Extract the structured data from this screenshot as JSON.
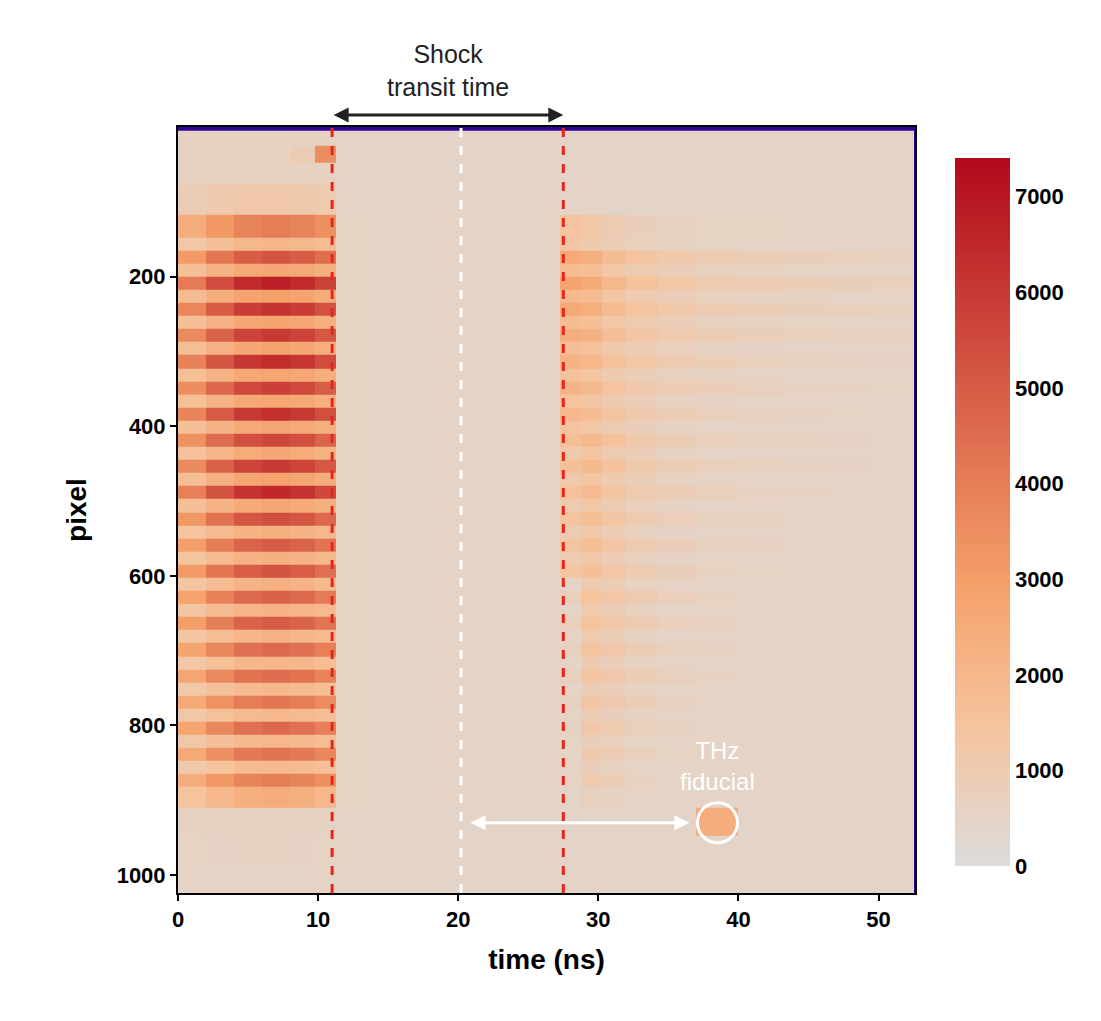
{
  "chart_data": {
    "type": "heatmap",
    "xlabel": "time (ns)",
    "ylabel": "pixel",
    "color": "Plasma",
    "xlim": [
      0,
      52.6
    ],
    "ylim": [
      1024,
      0
    ],
    "xticks": [
      0,
      10,
      20,
      30,
      40,
      50
    ],
    "yticks": [
      200,
      400,
      600,
      800,
      1000
    ],
    "colorbar": {
      "range": [
        0,
        7400
      ],
      "ticks": [
        0,
        1000,
        2000,
        3000,
        4000,
        5000,
        6000,
        7000
      ]
    },
    "x": [
      1,
      3,
      5,
      7,
      9,
      10.5,
      12,
      15,
      18,
      21,
      24,
      26.5,
      28,
      29.5,
      31,
      33,
      35.5,
      38.5,
      41.5,
      45,
      48,
      51
    ],
    "y": [
      15,
      35,
      60,
      95,
      138.75,
      156.25,
      173.75,
      191.25,
      208.75,
      226.25,
      243.75,
      261.25,
      278.75,
      296.25,
      313.75,
      331.25,
      348.75,
      366.25,
      383.75,
      401.25,
      418.75,
      436.25,
      453.75,
      471.25,
      488.75,
      506.25,
      523.75,
      541.25,
      558.75,
      576.25,
      593.75,
      611.25,
      628.75,
      646.25,
      663.75,
      681.25,
      698.75,
      716.25,
      733.75,
      751.25,
      768.75,
      786.25,
      803.75,
      821.25,
      838.75,
      856.25,
      873.75,
      891.25,
      930,
      965,
      1005
    ],
    "z": [
      [
        600,
        620,
        640,
        640,
        620,
        600,
        480,
        470,
        470,
        470,
        470,
        470,
        480,
        480,
        480,
        470,
        470,
        470,
        470,
        470,
        460,
        460
      ],
      [
        620,
        640,
        660,
        660,
        900,
        3500,
        500,
        470,
        470,
        470,
        470,
        470,
        480,
        480,
        480,
        470,
        470,
        470,
        470,
        470,
        460,
        460
      ],
      [
        650,
        680,
        700,
        700,
        680,
        650,
        490,
        470,
        470,
        470,
        470,
        470,
        480,
        480,
        480,
        470,
        470,
        470,
        470,
        470,
        460,
        460
      ],
      [
        900,
        1100,
        1200,
        1200,
        1150,
        1050,
        500,
        480,
        480,
        480,
        480,
        480,
        500,
        500,
        490,
        480,
        480,
        470,
        470,
        470,
        460,
        460
      ],
      [
        2400,
        3200,
        3800,
        4000,
        3800,
        3400,
        560,
        520,
        510,
        510,
        510,
        520,
        1400,
        1260,
        980,
        770,
        630,
        560,
        560,
        550,
        540,
        540
      ],
      [
        1250,
        1650,
        1950,
        2070,
        1950,
        1750,
        560,
        520,
        510,
        510,
        510,
        520,
        1300,
        1150,
        900,
        720,
        600,
        560,
        550,
        550,
        540,
        540
      ],
      [
        3120,
        4160,
        4940,
        5200,
        4940,
        4420,
        560,
        520,
        510,
        510,
        510,
        520,
        2600,
        2340,
        1820,
        1430,
        1170,
        990,
        860,
        780,
        730,
        680
      ],
      [
        1620,
        2160,
        2570,
        2700,
        2570,
        2300,
        560,
        520,
        510,
        510,
        510,
        520,
        1820,
        1640,
        1270,
        1000,
        820,
        690,
        600,
        560,
        550,
        540
      ],
      [
        4080,
        5440,
        6460,
        6800,
        6460,
        5780,
        560,
        520,
        510,
        510,
        510,
        520,
        2800,
        2520,
        1960,
        1540,
        1260,
        1060,
        920,
        840,
        780,
        730
      ],
      [
        1760,
        2340,
        2780,
        2930,
        2780,
        2490,
        560,
        520,
        510,
        510,
        510,
        520,
        1900,
        1760,
        1370,
        1080,
        880,
        740,
        650,
        590,
        550,
        540
      ],
      [
        3720,
        4960,
        5890,
        6200,
        5890,
        5270,
        560,
        520,
        510,
        510,
        510,
        520,
        2600,
        2340,
        1820,
        1430,
        1170,
        990,
        860,
        780,
        730,
        680
      ],
      [
        1650,
        2200,
        2610,
        2750,
        2610,
        2330,
        560,
        520,
        510,
        510,
        510,
        520,
        1820,
        1640,
        1270,
        1000,
        820,
        690,
        600,
        560,
        550,
        540
      ],
      [
        3600,
        4800,
        5700,
        6000,
        5700,
        5100,
        560,
        520,
        510,
        510,
        510,
        520,
        2400,
        2160,
        1680,
        1320,
        1080,
        910,
        790,
        720,
        670,
        620
      ],
      [
        1670,
        2230,
        2650,
        2790,
        2650,
        2370,
        560,
        520,
        510,
        510,
        510,
        520,
        1680,
        1510,
        1180,
        920,
        760,
        640,
        570,
        550,
        540,
        540
      ],
      [
        3840,
        5120,
        6080,
        6400,
        6080,
        5440,
        560,
        520,
        510,
        510,
        510,
        520,
        2200,
        1980,
        1540,
        1210,
        990,
        840,
        730,
        660,
        620,
        570
      ],
      [
        1650,
        2200,
        2610,
        2750,
        2610,
        2330,
        560,
        520,
        510,
        510,
        510,
        520,
        1540,
        1390,
        1080,
        850,
        690,
        590,
        550,
        540,
        540,
        530
      ],
      [
        3480,
        4640,
        5510,
        5800,
        5510,
        4930,
        560,
        520,
        510,
        510,
        510,
        520,
        2100,
        1890,
        1470,
        1160,
        950,
        800,
        690,
        630,
        590,
        560
      ],
      [
        1630,
        2180,
        2580,
        2720,
        2580,
        2310,
        560,
        520,
        510,
        510,
        510,
        520,
        1470,
        1320,
        1030,
        810,
        660,
        570,
        550,
        540,
        530,
        530
      ],
      [
        3780,
        5040,
        5990,
        6300,
        5990,
        5360,
        560,
        520,
        510,
        510,
        510,
        520,
        2000,
        1800,
        1400,
        1100,
        900,
        760,
        660,
        600,
        560,
        550
      ],
      [
        1610,
        2140,
        2550,
        2680,
        2550,
        2280,
        560,
        520,
        510,
        510,
        510,
        520,
        1400,
        1260,
        980,
        770,
        630,
        550,
        540,
        540,
        530,
        530
      ],
      [
        3360,
        4480,
        5320,
        5600,
        5320,
        4760,
        560,
        520,
        510,
        510,
        510,
        520,
        1620,
        1900,
        1520,
        1140,
        910,
        760,
        670,
        610,
        570,
        550
      ],
      [
        1570,
        2090,
        2480,
        2610,
        2480,
        2220,
        560,
        520,
        510,
        510,
        510,
        520,
        1130,
        1330,
        1060,
        800,
        640,
        550,
        540,
        540,
        530,
        530
      ],
      [
        3600,
        4800,
        5700,
        6000,
        5700,
        5100,
        560,
        520,
        510,
        510,
        510,
        520,
        1620,
        1900,
        1520,
        1140,
        910,
        760,
        670,
        610,
        570,
        550
      ],
      [
        1690,
        2250,
        2670,
        2810,
        2670,
        2390,
        560,
        520,
        510,
        510,
        510,
        520,
        1130,
        1330,
        1060,
        800,
        640,
        550,
        540,
        540,
        530,
        530
      ],
      [
        3900,
        5200,
        6180,
        6500,
        6180,
        5530,
        560,
        520,
        510,
        510,
        510,
        520,
        1530,
        1800,
        1440,
        1080,
        860,
        720,
        630,
        580,
        540,
        530
      ],
      [
        1610,
        2140,
        2550,
        2680,
        2550,
        2280,
        560,
        520,
        510,
        510,
        510,
        520,
        1070,
        1260,
        1010,
        760,
        600,
        550,
        540,
        530,
        530,
        520
      ],
      [
        3240,
        4320,
        5130,
        5400,
        5130,
        4590,
        560,
        520,
        510,
        510,
        510,
        520,
        1450,
        1700,
        1360,
        1020,
        820,
        680,
        600,
        540,
        530,
        520
      ],
      [
        1400,
        1870,
        2220,
        2340,
        2220,
        1990,
        560,
        520,
        510,
        510,
        510,
        520,
        1010,
        1190,
        950,
        710,
        570,
        540,
        530,
        530,
        520,
        520
      ],
      [
        3000,
        4000,
        4750,
        5000,
        4750,
        4250,
        560,
        520,
        510,
        510,
        510,
        520,
        1450,
        1700,
        1360,
        1020,
        820,
        680,
        600,
        540,
        530,
        520
      ],
      [
        1380,
        1840,
        2190,
        2300,
        2190,
        1960,
        560,
        520,
        510,
        510,
        510,
        520,
        1010,
        1190,
        950,
        710,
        570,
        540,
        530,
        530,
        520,
        520
      ],
      [
        3120,
        4160,
        4940,
        5200,
        4940,
        4420,
        560,
        520,
        510,
        510,
        510,
        520,
        1360,
        1600,
        1280,
        960,
        770,
        640,
        560,
        530,
        520,
        520
      ],
      [
        1350,
        1800,
        2140,
        2250,
        2140,
        1910,
        560,
        520,
        510,
        510,
        510,
        520,
        530,
        1050,
        890,
        680,
        550,
        540,
        530,
        520,
        520,
        520
      ],
      [
        2880,
        3840,
        4560,
        4800,
        4560,
        4080,
        560,
        520,
        510,
        510,
        510,
        520,
        750,
        1500,
        1280,
        980,
        750,
        630,
        540,
        530,
        520,
        520
      ],
      [
        1320,
        1760,
        2090,
        2200,
        2090,
        1870,
        560,
        520,
        510,
        510,
        510,
        520,
        530,
        1050,
        890,
        680,
        550,
        540,
        530,
        520,
        520,
        520
      ],
      [
        3000,
        4000,
        4750,
        5000,
        4750,
        4250,
        560,
        520,
        510,
        510,
        510,
        520,
        750,
        1500,
        1280,
        980,
        750,
        630,
        540,
        530,
        520,
        520
      ],
      [
        1300,
        1730,
        2050,
        2160,
        2050,
        1840,
        560,
        520,
        510,
        510,
        510,
        520,
        530,
        1000,
        850,
        650,
        540,
        530,
        520,
        520,
        520,
        510
      ],
      [
        2760,
        3680,
        4370,
        4600,
        4370,
        3910,
        560,
        520,
        510,
        510,
        510,
        520,
        700,
        1400,
        1190,
        910,
        700,
        590,
        540,
        520,
        520,
        510
      ],
      [
        1230,
        1640,
        1950,
        2050,
        1950,
        1740,
        560,
        520,
        510,
        510,
        510,
        520,
        530,
        980,
        830,
        640,
        540,
        530,
        520,
        520,
        510,
        510
      ],
      [
        2700,
        3600,
        4280,
        4500,
        4280,
        3830,
        560,
        520,
        510,
        510,
        510,
        520,
        700,
        1400,
        1190,
        910,
        700,
        590,
        540,
        520,
        520,
        510
      ],
      [
        1180,
        1570,
        1860,
        1960,
        1860,
        1670,
        560,
        520,
        510,
        510,
        510,
        520,
        520,
        950,
        800,
        620,
        530,
        520,
        520,
        510,
        510,
        510
      ],
      [
        2520,
        3360,
        3990,
        4200,
        3990,
        3570,
        560,
        520,
        510,
        510,
        510,
        520,
        650,
        1300,
        1100,
        850,
        650,
        550,
        530,
        520,
        510,
        510
      ],
      [
        1190,
        1580,
        1880,
        1980,
        1880,
        1680,
        560,
        520,
        510,
        510,
        510,
        520,
        520,
        910,
        770,
        600,
        530,
        520,
        510,
        510,
        510,
        510
      ],
      [
        2760,
        3680,
        4370,
        4600,
        4370,
        3910,
        560,
        520,
        510,
        510,
        510,
        520,
        600,
        1200,
        1020,
        780,
        600,
        540,
        520,
        510,
        510,
        510
      ],
      [
        1200,
        1600,
        1900,
        2000,
        1900,
        1700,
        560,
        520,
        510,
        510,
        510,
        520,
        520,
        840,
        720,
        560,
        520,
        510,
        510,
        510,
        500,
        500
      ],
      [
        2580,
        3440,
        4090,
        4300,
        4090,
        3660,
        560,
        520,
        510,
        510,
        510,
        520,
        560,
        1100,
        940,
        720,
        560,
        530,
        520,
        510,
        500,
        500
      ],
      [
        1120,
        1500,
        1780,
        1870,
        1780,
        1590,
        560,
        520,
        510,
        510,
        510,
        520,
        510,
        770,
        660,
        540,
        520,
        510,
        500,
        500,
        500,
        500
      ],
      [
        2400,
        3200,
        3800,
        4000,
        3800,
        3400,
        560,
        520,
        510,
        510,
        510,
        520,
        520,
        1000,
        850,
        650,
        530,
        520,
        510,
        500,
        500,
        500
      ],
      [
        1500,
        2000,
        2300,
        2400,
        2300,
        2000,
        560,
        520,
        510,
        510,
        510,
        520,
        500,
        700,
        620,
        540,
        510,
        500,
        500,
        500,
        500,
        500
      ],
      [
        600,
        620,
        640,
        640,
        620,
        600,
        480,
        470,
        470,
        470,
        470,
        470,
        480,
        480,
        480,
        480,
        480,
        2400,
        470,
        470,
        470,
        470
      ],
      [
        560,
        570,
        580,
        580,
        570,
        560,
        470,
        470,
        470,
        470,
        470,
        470,
        470,
        470,
        470,
        470,
        470,
        470,
        470,
        470,
        470,
        470
      ],
      [
        520,
        530,
        540,
        540,
        530,
        520,
        460,
        460,
        460,
        460,
        460,
        460,
        460,
        460,
        460,
        460,
        460,
        460,
        460,
        460,
        460,
        460
      ]
    ],
    "vlines": [
      {
        "x": 11,
        "color": "#e8251c",
        "line_style": "dashed"
      },
      {
        "x": 20.2,
        "color": "#ffffff",
        "line_style": "dashed"
      },
      {
        "x": 27.5,
        "color": "#e8251c",
        "line_style": "dashed"
      }
    ],
    "annotations": [
      {
        "text_lines": [
          "Shock",
          "transit time"
        ],
        "arrow_from": 11,
        "arrow_to": 27.5,
        "color": "#222222"
      },
      {
        "text_lines": [
          "THz",
          "fiducial"
        ],
        "x": 38.5,
        "y": 930,
        "arrow_from": 20.2,
        "color": "#ffffff",
        "marker": "circle"
      }
    ]
  }
}
